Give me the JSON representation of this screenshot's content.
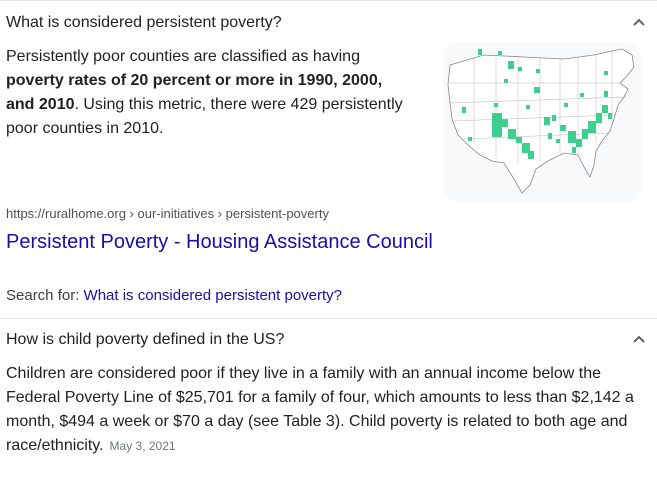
{
  "faq": [
    {
      "question": "What is considered persistent poverty?",
      "answer": {
        "intro": "Persistently poor counties are classified as having ",
        "bold": "poverty rates of 20 percent or more in 1990, 2000, and 2010",
        "rest": ". Using this metric, there were 429 persistently poor counties in 2010."
      },
      "image_icon": "us-county-map",
      "source_url": "https://ruralhome.org › our-initiatives › persistent-poverty",
      "result_title": "Persistent Poverty - Housing Assistance Council",
      "search_for_label": "Search for: ",
      "search_for_link": "What is considered persistent poverty?"
    },
    {
      "question": "How is child poverty defined in the US?",
      "answer_text": "Children are considered poor if they live in a family with an annual income below the Federal Poverty Line of $25,701 for a family of four, which amounts to less than $2,142 a month, $494 a week or $70 a day (see Table 3). Child poverty is related to both age and race/ethnicity.",
      "date": "May 3, 2021"
    }
  ],
  "colors": {
    "link": "#1a0dab",
    "map_highlight": "#3ecf8e",
    "text": "#202124"
  }
}
